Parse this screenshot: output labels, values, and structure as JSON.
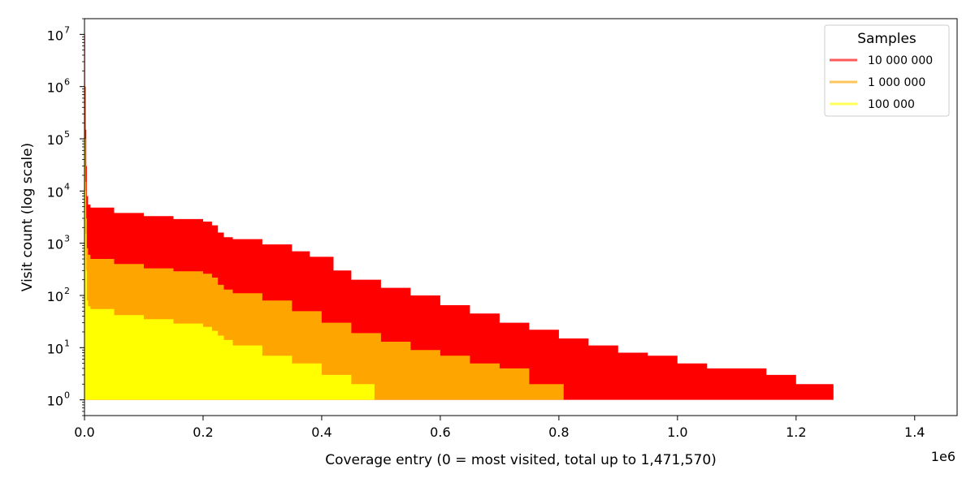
{
  "chart_data": {
    "type": "area",
    "title": "",
    "xlabel": "Coverage entry (0 = most visited, total up to 1,471,570)",
    "ylabel": "Visit count (log scale)",
    "x_offset_label": "1e6",
    "x_scale": 1000000,
    "xlim": [
      0,
      1471570
    ],
    "ylim": [
      0.5,
      20000000
    ],
    "yscale": "log",
    "x_ticks": [
      0,
      200000,
      400000,
      600000,
      800000,
      1000000,
      1200000,
      1400000
    ],
    "x_tick_labels": [
      "0.0",
      "0.2",
      "0.4",
      "0.6",
      "0.8",
      "1.0",
      "1.2",
      "1.4"
    ],
    "y_ticks": [
      1,
      10,
      100,
      1000,
      10000,
      100000,
      1000000,
      10000000
    ],
    "y_tick_exponents": [
      "0",
      "1",
      "2",
      "3",
      "4",
      "5",
      "6",
      "7"
    ],
    "grid": false,
    "legend": {
      "title": "Samples",
      "placement": "top-right"
    },
    "series": [
      {
        "name": "10 000 000",
        "color": "#ff0000",
        "x": [
          0,
          1000,
          2000,
          3000,
          4000,
          6000,
          10000,
          50000,
          100000,
          150000,
          200000,
          215000,
          225000,
          235000,
          250000,
          300000,
          350000,
          380000,
          420000,
          450000,
          500000,
          550000,
          600000,
          650000,
          700000,
          750000,
          800000,
          850000,
          900000,
          950000,
          1000000,
          1050000,
          1100000,
          1150000,
          1200000,
          1263000
        ],
        "y": [
          10000000,
          1000000,
          150000,
          30000,
          8000,
          5500,
          4800,
          3800,
          3300,
          2900,
          2600,
          2200,
          1600,
          1300,
          1200,
          950,
          700,
          550,
          300,
          200,
          140,
          100,
          65,
          45,
          30,
          22,
          15,
          11,
          8,
          7,
          5,
          4,
          4,
          3,
          2,
          2
        ]
      },
      {
        "name": "1 000 000",
        "color": "#ffa500",
        "x": [
          0,
          1000,
          2000,
          3000,
          4000,
          6000,
          10000,
          50000,
          100000,
          150000,
          200000,
          215000,
          225000,
          235000,
          250000,
          300000,
          350000,
          400000,
          450000,
          500000,
          550000,
          600000,
          650000,
          700000,
          750000,
          808000
        ],
        "y": [
          1000000,
          100000,
          15000,
          3000,
          800,
          600,
          500,
          400,
          330,
          290,
          260,
          220,
          160,
          130,
          110,
          80,
          50,
          30,
          19,
          13,
          9,
          7,
          5,
          4,
          2,
          2
        ]
      },
      {
        "name": "100 000",
        "color": "#ffff00",
        "x": [
          0,
          1000,
          2000,
          3000,
          4000,
          6000,
          10000,
          50000,
          100000,
          150000,
          200000,
          215000,
          225000,
          235000,
          250000,
          300000,
          350000,
          400000,
          450000,
          489000
        ],
        "y": [
          100000,
          10000,
          1500,
          300,
          80,
          62,
          55,
          42,
          35,
          29,
          25,
          21,
          17,
          14,
          11,
          7,
          5,
          3,
          2,
          2
        ]
      }
    ]
  }
}
